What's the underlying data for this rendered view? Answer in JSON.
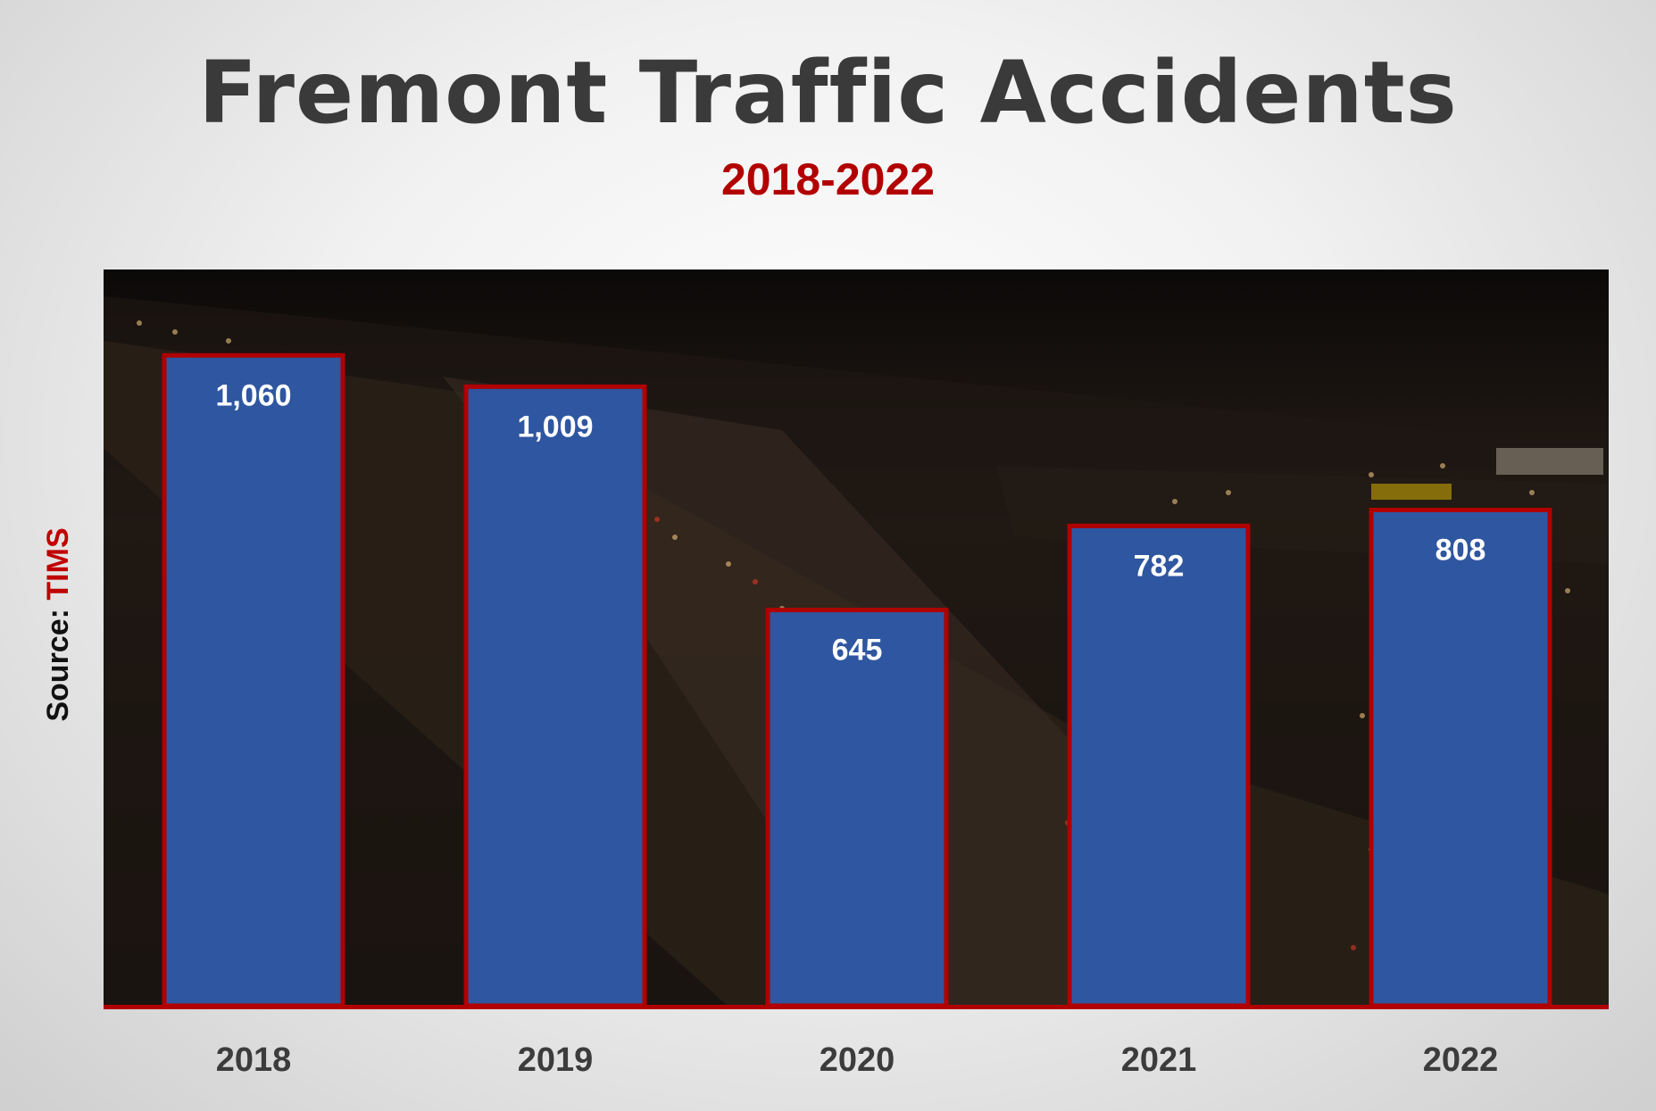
{
  "header": {
    "title": "Fremont Traffic Accidents",
    "subtitle": "2018-2022"
  },
  "source": {
    "prefix": "Source: ",
    "name": "TIMS"
  },
  "colors": {
    "bar_fill": "#2f56a0",
    "bar_border": "#b00000",
    "title": "#3a3a3a",
    "subtitle": "#b20000",
    "tick_label": "#3c3c3c"
  },
  "chart_data": {
    "type": "bar",
    "title": "Fremont Traffic Accidents",
    "subtitle": "2018-2022",
    "categories": [
      "2018",
      "2019",
      "2020",
      "2021",
      "2022"
    ],
    "values": [
      1060,
      1009,
      645,
      782,
      808
    ],
    "value_labels": [
      "1,060",
      "1,009",
      "645",
      "782",
      "808"
    ],
    "xlabel": "",
    "ylabel": "",
    "ylim": [
      0,
      1200
    ],
    "grid": false,
    "legend": "none",
    "background": "night highway photograph"
  }
}
